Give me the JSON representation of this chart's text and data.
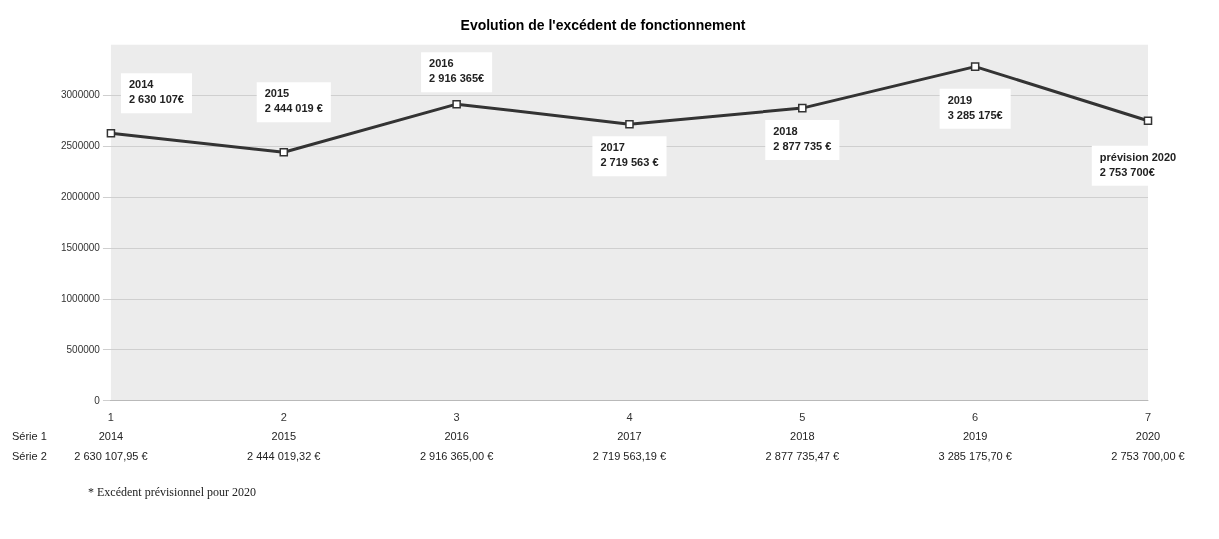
{
  "chart_data": {
    "type": "line",
    "title": "Evolution de l'excédent de fonctionnement",
    "categories": [
      "1",
      "2",
      "3",
      "4",
      "5",
      "6",
      "7"
    ],
    "series": [
      {
        "color": "#333333",
        "values": [
          2630107,
          2444019,
          2916365,
          2719563,
          2877735,
          3285175,
          2753700
        ],
        "value_labels": [
          "2014\n2 630 107€",
          "2015\n2 444 019 €",
          "2016\n2 916 365€",
          "2017\n2 719 563 €",
          "2018\n2 877 735 €",
          "2019\n3 285 175€",
          "prévision 2020\n2 753 700€"
        ]
      }
    ],
    "ylim": [
      0,
      3500000
    ],
    "yticks": [
      0,
      500000,
      1000000,
      1500000,
      2000000,
      2500000,
      3000000
    ],
    "grid": "y",
    "marker": "square",
    "line_style": "solid",
    "legend": false,
    "annotations": [
      "* Excédent prévisionnel pour 2020",
      "Série 1",
      "Série 2",
      "2014",
      "2015",
      "2016",
      "2017",
      "2018",
      "2019",
      "2020",
      "2 630 107,95 €",
      "2 444 019,32 €",
      "2 916 365,00 €",
      "2 719 563,19 €",
      "2 877 735,47 €",
      "3 285 175,70 €",
      "2 753 700,00 €"
    ]
  }
}
